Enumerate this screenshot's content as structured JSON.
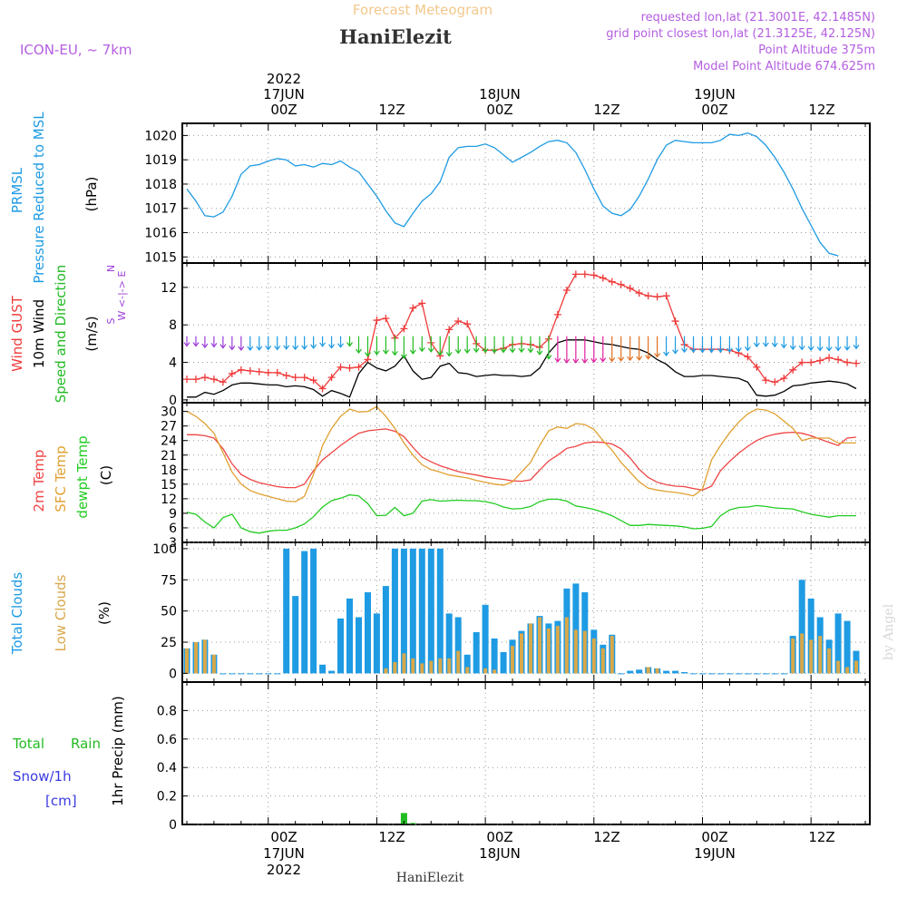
{
  "header": {
    "title": "Forecast Meteogram",
    "model": "ICON-EU, ~ 7km",
    "station": "HaniElezit",
    "requested": "requested lon,lat (21.3001E, 42.1485N)",
    "grid_point": "grid point closest lon,lat (21.3125E, 42.125N)",
    "point_alt": "Point Altitude 375m",
    "model_alt": "Model Point Altitude 674.625m"
  },
  "footer": {
    "station": "HaniElezit",
    "watermark": "by Angel"
  },
  "time_axis": {
    "top_year": "2022",
    "bottom_year": "2022",
    "ticks": [
      {
        "hour": 24,
        "label": "00Z",
        "date": "17JUN"
      },
      {
        "hour": 36,
        "label": "12Z",
        "date": ""
      },
      {
        "hour": 48,
        "label": "00Z",
        "date": "18JUN"
      },
      {
        "hour": 60,
        "label": "12Z",
        "date": ""
      },
      {
        "hour": 72,
        "label": "00Z",
        "date": "19JUN"
      },
      {
        "hour": 84,
        "label": "12Z",
        "date": ""
      }
    ]
  },
  "panels": {
    "pressure": {
      "label1": "PRMSL",
      "label2": "Pressure Reduced to MSL",
      "unit": "(hPa)",
      "color": "#1e9be3"
    },
    "wind": {
      "gust_label": "Wind GUST",
      "wind_label": "10m Wind",
      "dir_label": "Speed and Direction",
      "unit": "(m/s)",
      "compass": "W <-|-> E",
      "compass_n": "N",
      "compass_s": "S",
      "gust_color": "#ef3b3b",
      "wind_color": "#000000",
      "dir_color": "#22bb22",
      "compass_color": "#9b3dd8"
    },
    "temp": {
      "t2m_label": "2m Temp",
      "sfc_label": "SFC Temp",
      "dew_label": "dewpt Temp",
      "unit": "(C)",
      "t2m_color": "#ef4444",
      "sfc_color": "#e0a030",
      "dew_color": "#22cc22"
    },
    "clouds": {
      "total_label": "Total Clouds",
      "low_label": "Low Clouds",
      "unit": "(%)",
      "total_color": "#1e9be3",
      "low_color": "#d8a84a"
    },
    "precip": {
      "rain_label1": "Total",
      "rain_label2": "Rain",
      "snow_label": "Snow/1h",
      "snow_unit": "[cm]",
      "axis_label": "1hr Precip (mm)",
      "rain_color": "#22bb22",
      "snow_color": "#3a3ae0"
    }
  },
  "chart_data": [
    {
      "type": "line",
      "title": "PRMSL Pressure Reduced to MSL",
      "ylabel": "(hPa)",
      "ylim": [
        1014.75,
        1020.5
      ],
      "yticks": [
        1015,
        1016,
        1017,
        1018,
        1019,
        1020
      ],
      "x_hours": [
        15,
        16,
        17,
        18,
        19,
        20,
        21,
        22,
        23,
        24,
        25,
        26,
        27,
        28,
        29,
        30,
        31,
        32,
        33,
        34,
        35,
        36,
        37,
        38,
        39,
        40,
        41,
        42,
        43,
        44,
        45,
        46,
        47,
        48,
        49,
        50,
        51,
        52,
        53,
        54,
        55,
        56,
        57,
        58,
        59,
        60,
        61,
        62,
        63,
        64,
        65,
        66,
        67,
        68,
        69,
        70,
        71,
        72,
        73,
        74,
        75,
        76,
        77,
        78,
        79,
        80,
        81,
        82,
        83,
        84,
        85,
        86,
        87,
        88,
        89,
        90
      ],
      "series": [
        {
          "values": [
            1017.8,
            1017.3,
            1016.7,
            1016.65,
            1016.85,
            1017.5,
            1018.4,
            1018.75,
            1018.8,
            1018.95,
            1019.05,
            1019.0,
            1018.75,
            1018.8,
            1018.7,
            1018.85,
            1018.8,
            1018.95,
            1018.7,
            1018.5,
            1018.0,
            1017.5,
            1016.9,
            1016.4,
            1016.25,
            1016.8,
            1017.3,
            1017.6,
            1018.1,
            1019.1,
            1019.5,
            1019.55,
            1019.55,
            1019.65,
            1019.5,
            1019.2,
            1018.9,
            1019.1,
            1019.3,
            1019.55,
            1019.75,
            1019.8,
            1019.7,
            1019.3,
            1018.6,
            1017.8,
            1017.1,
            1016.8,
            1016.7,
            1016.95,
            1017.5,
            1018.2,
            1019.0,
            1019.6,
            1019.8,
            1019.75,
            1019.7,
            1019.7,
            1019.7,
            1019.8,
            1020.05,
            1020.0,
            1020.1,
            1019.95,
            1019.6,
            1019.1,
            1018.5,
            1017.8,
            1017.0,
            1016.3,
            1015.6,
            1015.15,
            1015.05
          ]
        }
      ]
    },
    {
      "type": "line",
      "title": "Wind GUST / 10m Wind",
      "ylabel": "(m/s)",
      "ylim": [
        -0.3,
        14.6
      ],
      "yticks": [
        0,
        4,
        8,
        12
      ],
      "x_hours": [
        15,
        16,
        17,
        18,
        19,
        20,
        21,
        22,
        23,
        24,
        25,
        26,
        27,
        28,
        29,
        30,
        31,
        32,
        33,
        34,
        35,
        36,
        37,
        38,
        39,
        40,
        41,
        42,
        43,
        44,
        45,
        46,
        47,
        48,
        49,
        50,
        51,
        52,
        53,
        54,
        55,
        56,
        57,
        58,
        59,
        60,
        61,
        62,
        63,
        64,
        65,
        66,
        67,
        68,
        69,
        70,
        71,
        72,
        73,
        74,
        75,
        76,
        77,
        78,
        79,
        80,
        81,
        82,
        83,
        84,
        85,
        86,
        87,
        88,
        89,
        90
      ],
      "series": [
        {
          "name": "Wind GUST",
          "values": [
            2.2,
            2.2,
            2.4,
            2.2,
            1.9,
            2.8,
            3.2,
            3.1,
            3.0,
            2.9,
            2.9,
            2.6,
            2.4,
            2.4,
            2.1,
            1.2,
            2.4,
            3.5,
            3.4,
            3.5,
            4.3,
            8.5,
            8.7,
            6.6,
            7.6,
            9.8,
            10.3,
            6.1,
            4.7,
            7.5,
            8.4,
            8.1,
            6.0,
            5.3,
            5.3,
            5.5,
            5.9,
            6.0,
            5.9,
            5.6,
            6.5,
            9.1,
            11.7,
            13.4,
            13.4,
            13.3,
            13.0,
            12.6,
            12.3,
            11.9,
            11.4,
            11.1,
            11.0,
            11.1,
            8.4,
            5.9,
            5.4,
            5.4,
            5.4,
            5.4,
            5.3,
            5.0,
            4.6,
            3.5,
            2.1,
            1.9,
            2.3,
            3.2,
            4.0,
            4.0,
            4.2,
            4.5,
            4.3,
            4.0,
            3.9
          ]
        },
        {
          "name": "10m Wind",
          "values": [
            0.3,
            0.3,
            0.8,
            0.6,
            1.0,
            1.6,
            1.8,
            1.8,
            1.7,
            1.6,
            1.6,
            1.4,
            1.5,
            1.4,
            1.1,
            0.4,
            1.0,
            0.7,
            0.3,
            2.8,
            4.0,
            3.4,
            3.1,
            3.6,
            4.7,
            3.1,
            2.2,
            2.4,
            3.6,
            3.9,
            2.9,
            2.8,
            2.5,
            2.6,
            2.7,
            2.6,
            2.6,
            2.5,
            2.6,
            3.4,
            5.0,
            6.1,
            6.4,
            6.4,
            6.4,
            6.2,
            6.0,
            5.9,
            5.7,
            5.5,
            5.4,
            5.0,
            4.3,
            3.8,
            3.0,
            2.5,
            2.5,
            2.6,
            2.6,
            2.5,
            2.4,
            2.3,
            1.9,
            0.5,
            0.4,
            0.5,
            0.9,
            1.5,
            1.6,
            1.8,
            1.9,
            2.0,
            1.9,
            1.7,
            1.2
          ]
        }
      ]
    },
    {
      "type": "line",
      "title": "2m Temp / SFC Temp / dewpt Temp",
      "ylabel": "(C)",
      "ylim": [
        3,
        31.8
      ],
      "yticks": [
        3,
        6,
        9,
        12,
        15,
        18,
        21,
        24,
        27,
        30
      ],
      "x_hours": [
        15,
        16,
        17,
        18,
        19,
        20,
        21,
        22,
        23,
        24,
        25,
        26,
        27,
        28,
        29,
        30,
        31,
        32,
        33,
        34,
        35,
        36,
        37,
        38,
        39,
        40,
        41,
        42,
        43,
        44,
        45,
        46,
        47,
        48,
        49,
        50,
        51,
        52,
        53,
        54,
        55,
        56,
        57,
        58,
        59,
        60,
        61,
        62,
        63,
        64,
        65,
        66,
        67,
        68,
        69,
        70,
        71,
        72,
        73,
        74,
        75,
        76,
        77,
        78,
        79,
        80,
        81,
        82,
        83,
        84,
        85,
        86,
        87,
        88,
        89,
        90
      ],
      "series": [
        {
          "name": "2m Temp",
          "values": [
            25.2,
            25.2,
            25.0,
            24.5,
            22.3,
            19.2,
            17.0,
            16.0,
            15.3,
            14.9,
            14.5,
            14.3,
            14.3,
            15.0,
            17.8,
            20.0,
            21.5,
            23.0,
            24.3,
            25.5,
            26.0,
            26.2,
            26.4,
            25.9,
            24.8,
            22.6,
            20.6,
            19.6,
            18.8,
            18.2,
            17.6,
            17.2,
            16.9,
            16.5,
            16.2,
            16.0,
            15.7,
            15.6,
            15.9,
            17.9,
            19.8,
            21.0,
            22.4,
            22.8,
            23.5,
            23.7,
            23.6,
            23.3,
            22.3,
            20.4,
            18.1,
            16.4,
            15.4,
            14.9,
            14.6,
            14.5,
            14.1,
            13.8,
            14.6,
            17.8,
            19.7,
            21.4,
            22.8,
            24.0,
            24.8,
            25.3,
            25.6,
            25.7,
            25.5,
            25.0,
            24.3,
            23.6,
            23.0,
            24.5,
            24.7
          ]
        },
        {
          "name": "SFC Temp",
          "values": [
            30.0,
            29.0,
            27.5,
            25.5,
            21.5,
            17.5,
            15.0,
            13.7,
            13.0,
            12.5,
            12.0,
            11.5,
            11.4,
            12.5,
            17.0,
            23.0,
            26.5,
            29.0,
            30.5,
            29.9,
            30.0,
            31.0,
            29.0,
            26.5,
            23.5,
            21.0,
            19.0,
            18.0,
            17.5,
            16.9,
            16.6,
            16.3,
            15.8,
            15.4,
            15.0,
            14.8,
            15.5,
            17.5,
            19.5,
            23.0,
            26.0,
            26.8,
            26.5,
            27.5,
            27.3,
            26.3,
            24.0,
            22.0,
            19.5,
            17.5,
            15.5,
            14.2,
            13.8,
            13.5,
            13.3,
            13.0,
            12.6,
            14.0,
            20.0,
            23.0,
            25.6,
            27.8,
            29.5,
            30.5,
            30.3,
            29.5,
            28.0,
            26.5,
            24.0,
            24.5,
            24.5,
            24.5,
            23.5,
            23.5,
            23.5
          ]
        },
        {
          "name": "dewpt Temp",
          "values": [
            9.2,
            8.8,
            7.2,
            6.0,
            8.1,
            8.8,
            6.0,
            5.2,
            4.9,
            5.3,
            5.5,
            5.5,
            6.0,
            6.8,
            8.3,
            10.3,
            11.6,
            12.1,
            12.8,
            12.6,
            11.0,
            8.5,
            8.6,
            10.2,
            8.5,
            9.0,
            11.5,
            11.8,
            11.5,
            11.6,
            11.7,
            11.6,
            11.6,
            11.4,
            11.0,
            10.3,
            9.9,
            10.0,
            10.4,
            11.4,
            11.9,
            11.9,
            11.5,
            10.5,
            10.2,
            9.8,
            9.2,
            8.5,
            7.5,
            6.5,
            6.5,
            6.7,
            6.6,
            6.5,
            6.4,
            6.2,
            5.8,
            5.9,
            6.3,
            8.5,
            9.7,
            10.2,
            10.3,
            10.6,
            10.4,
            10.1,
            10.0,
            9.9,
            9.3,
            8.8,
            8.5,
            8.2,
            8.5,
            8.5,
            8.5
          ]
        }
      ]
    },
    {
      "type": "bar",
      "title": "Total Clouds / Low Clouds",
      "ylabel": "(%)",
      "ylim": [
        -7,
        105
      ],
      "yticks": [
        0,
        25,
        50,
        75,
        100
      ],
      "x_hours": [
        15,
        16,
        17,
        18,
        19,
        20,
        21,
        22,
        23,
        24,
        25,
        26,
        27,
        28,
        29,
        30,
        31,
        32,
        33,
        34,
        35,
        36,
        37,
        38,
        39,
        40,
        41,
        42,
        43,
        44,
        45,
        46,
        47,
        48,
        49,
        50,
        51,
        52,
        53,
        54,
        55,
        56,
        57,
        58,
        59,
        60,
        61,
        62,
        63,
        64,
        65,
        66,
        67,
        68,
        69,
        70,
        71,
        72,
        73,
        74,
        75,
        76,
        77,
        78,
        79,
        80,
        81,
        82,
        83,
        84,
        85,
        86,
        87,
        88,
        89,
        90
      ],
      "series": [
        {
          "name": "Total Clouds",
          "values": [
            20,
            25,
            27,
            15,
            0,
            0,
            0,
            0,
            0,
            0,
            0,
            100,
            62,
            98,
            100,
            7,
            2,
            44,
            60,
            45,
            65,
            48,
            70,
            100,
            100,
            100,
            100,
            100,
            100,
            48,
            45,
            15,
            33,
            55,
            28,
            17,
            27,
            34,
            40,
            46,
            40,
            42,
            68,
            72,
            65,
            35,
            23,
            31,
            0,
            2,
            3,
            5,
            4,
            2,
            2,
            1,
            0,
            0,
            0,
            0,
            0,
            0,
            0,
            0,
            0,
            0,
            0,
            30,
            75,
            60,
            45,
            27,
            48,
            42,
            18
          ]
        },
        {
          "name": "Low Clouds",
          "values": [
            20,
            25,
            27,
            15,
            0,
            0,
            0,
            0,
            0,
            0,
            0,
            0,
            0,
            0,
            0,
            0,
            0,
            0,
            0,
            0,
            0,
            0,
            4,
            9,
            16,
            12,
            8,
            10,
            12,
            12,
            18,
            5,
            0,
            4,
            3,
            0,
            22,
            32,
            40,
            45,
            36,
            38,
            45,
            35,
            34,
            28,
            20,
            30,
            0,
            0,
            0,
            5,
            4,
            0,
            0,
            0,
            0,
            0,
            0,
            0,
            0,
            0,
            0,
            0,
            0,
            0,
            0,
            28,
            32,
            27,
            30,
            20,
            10,
            5,
            10
          ]
        }
      ]
    },
    {
      "type": "bar",
      "title": "1hr Precip (mm)",
      "ylabel": "1hr Precip (mm)",
      "ylim": [
        0,
        1.0
      ],
      "yticks": [
        0,
        0.2,
        0.4,
        0.6,
        0.8
      ],
      "series": [
        {
          "name": "Total Rain",
          "x_hours": [
            39,
            40
          ],
          "values": [
            0.08,
            0.01
          ]
        }
      ]
    }
  ]
}
